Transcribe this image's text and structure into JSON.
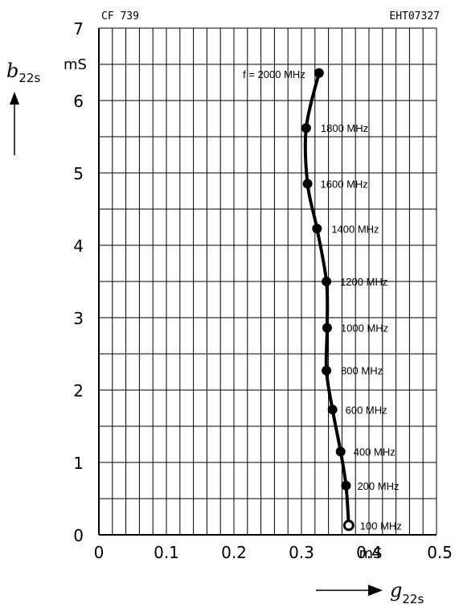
{
  "chart_data": {
    "type": "line",
    "code_left": "CF 739",
    "code_right": "EHT07327",
    "x_axis": {
      "symbol": "g",
      "subscript": "22s",
      "unit": "mS",
      "range": [
        0,
        0.5
      ],
      "ticks": [
        "0",
        "0.1",
        "0.2",
        "0.3",
        "0.4",
        "0.5"
      ]
    },
    "y_axis": {
      "symbol": "b",
      "subscript": "22s",
      "unit": "mS",
      "range": [
        0,
        7
      ],
      "ticks": [
        "0",
        "1",
        "2",
        "3",
        "4",
        "5",
        "6",
        "7"
      ]
    },
    "grid": true,
    "series": [
      {
        "points": [
          {
            "label": "100 MHz",
            "x": 0.37,
            "y": 0.13
          },
          {
            "label": "200 MHz",
            "x": 0.366,
            "y": 0.68
          },
          {
            "label": "400 MHz",
            "x": 0.358,
            "y": 1.15
          },
          {
            "label": "600 MHz",
            "x": 0.346,
            "y": 1.73
          },
          {
            "label": "800 MHz",
            "x": 0.337,
            "y": 2.27
          },
          {
            "label": "1000 MHz",
            "x": 0.338,
            "y": 2.86
          },
          {
            "label": "1200 MHz",
            "x": 0.337,
            "y": 3.5
          },
          {
            "label": "1400 MHz",
            "x": 0.323,
            "y": 4.23
          },
          {
            "label": "1600 MHz",
            "x": 0.309,
            "y": 4.85
          },
          {
            "label": "1800 MHz",
            "x": 0.307,
            "y": 5.62
          },
          {
            "label": "f = 2000 MHz",
            "x": 0.326,
            "y": 6.38
          }
        ]
      }
    ]
  },
  "colors": {
    "line": "#000000",
    "grid": "#000000",
    "background": "#ffffff"
  }
}
